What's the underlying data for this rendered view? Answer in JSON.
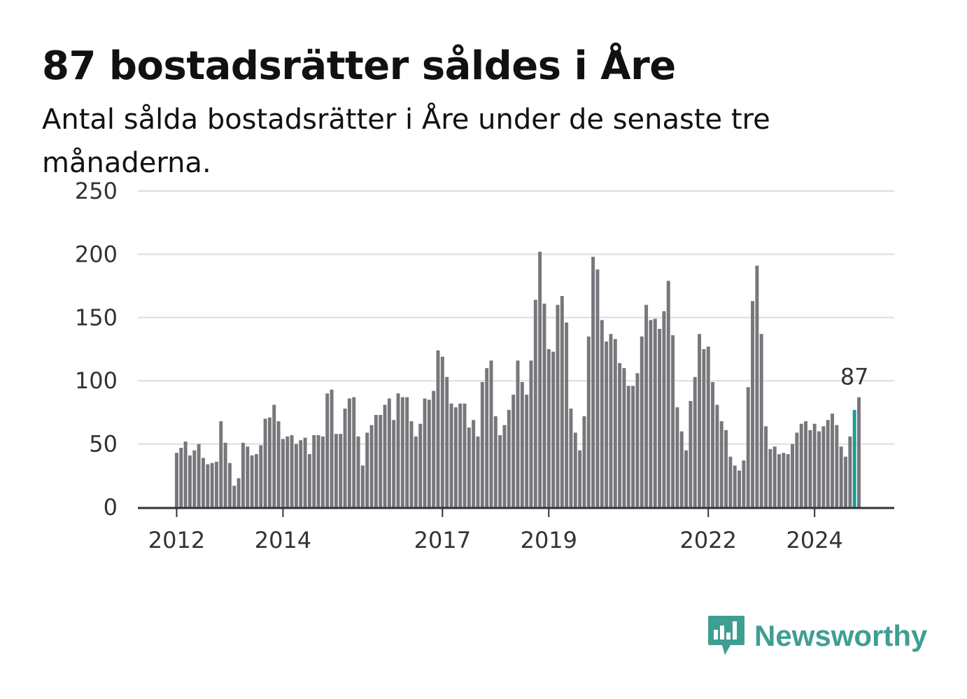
{
  "title": "87 bostadsrätter såldes i Åre",
  "subtitle": "Antal sålda bostadsrätter i Åre under de senaste tre månaderna.",
  "brand": {
    "name": "Newsworthy",
    "icon": "newsworthy-chart-icon",
    "color": "#3f9e92"
  },
  "colors": {
    "bar": "#77767b",
    "highlight": "#1a9e96",
    "grid": "#dddddd",
    "axis": "#333333"
  },
  "chart_data": {
    "type": "bar",
    "title": "87 bostadsrätter såldes i Åre",
    "xlabel": "",
    "ylabel": "",
    "ylim": [
      0,
      250
    ],
    "yticks": [
      0,
      50,
      100,
      150,
      200,
      250
    ],
    "grid": true,
    "first_month": "2012-01",
    "xticks": [
      {
        "label": "2012",
        "month": "2012-01"
      },
      {
        "label": "2014",
        "month": "2014-01"
      },
      {
        "label": "2017",
        "month": "2017-01"
      },
      {
        "label": "2019",
        "month": "2019-01"
      },
      {
        "label": "2022",
        "month": "2022-01"
      },
      {
        "label": "2024",
        "month": "2024-01"
      }
    ],
    "highlight": {
      "month": "2024-10",
      "value": 87,
      "label": "87"
    },
    "values": [
      43,
      47,
      52,
      41,
      45,
      50,
      39,
      34,
      35,
      36,
      68,
      51,
      35,
      17,
      23,
      51,
      48,
      41,
      42,
      49,
      70,
      71,
      81,
      68,
      54,
      56,
      57,
      50,
      53,
      55,
      42,
      57,
      57,
      56,
      90,
      93,
      58,
      58,
      78,
      86,
      87,
      56,
      33,
      59,
      65,
      73,
      73,
      81,
      86,
      69,
      90,
      87,
      87,
      68,
      56,
      66,
      86,
      85,
      92,
      124,
      119,
      103,
      82,
      79,
      82,
      82,
      63,
      69,
      56,
      99,
      110,
      116,
      72,
      57,
      65,
      77,
      89,
      116,
      99,
      89,
      116,
      164,
      202,
      161,
      125,
      123,
      160,
      167,
      146,
      78,
      59,
      45,
      72,
      135,
      198,
      188,
      148,
      131,
      137,
      133,
      114,
      110,
      96,
      96,
      106,
      135,
      160,
      148,
      149,
      141,
      155,
      179,
      136,
      79,
      60,
      45,
      84,
      103,
      137,
      125,
      127,
      99,
      81,
      68,
      61,
      40,
      33,
      29,
      37,
      95,
      163,
      191,
      137,
      64,
      46,
      48,
      42,
      43,
      42,
      50,
      59,
      66,
      68,
      61,
      66,
      60,
      64,
      69,
      74,
      65,
      48,
      40,
      56,
      77,
      87
    ]
  }
}
